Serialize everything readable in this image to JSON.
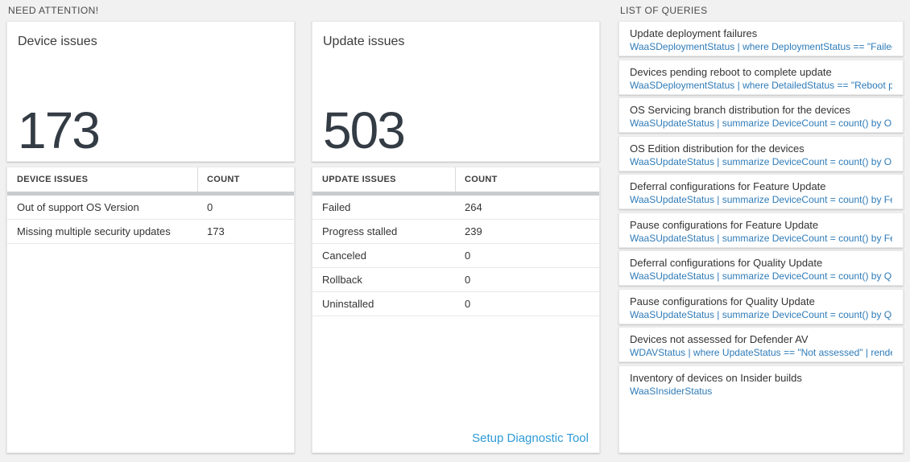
{
  "colors": {
    "accent-blue": "#2e7bb8",
    "link-blue": "#2e9bd6",
    "big-number": "#333b44",
    "header-bar": "#c9ccce"
  },
  "need_attention": {
    "section_label": "NEED ATTENTION!",
    "cards": [
      {
        "title": "Device issues",
        "big_number": "173",
        "table": {
          "columns": [
            "DEVICE ISSUES",
            "COUNT"
          ],
          "rows": [
            {
              "label": "Out of support OS Version",
              "count": "0"
            },
            {
              "label": "Missing multiple security updates",
              "count": "173"
            }
          ]
        }
      },
      {
        "title": "Update issues",
        "big_number": "503",
        "table": {
          "columns": [
            "UPDATE ISSUES",
            "COUNT"
          ],
          "rows": [
            {
              "label": "Failed",
              "count": "264"
            },
            {
              "label": "Progress stalled",
              "count": "239"
            },
            {
              "label": "Canceled",
              "count": "0"
            },
            {
              "label": "Rollback",
              "count": "0"
            },
            {
              "label": "Uninstalled",
              "count": "0"
            }
          ]
        },
        "footer_link": "Setup Diagnostic Tool"
      }
    ]
  },
  "queries": {
    "section_label": "LIST OF QUERIES",
    "items": [
      {
        "title": "Update deployment failures",
        "query": "WaaSDeploymentStatus | where DeploymentStatus == \"Failed\" |..."
      },
      {
        "title": "Devices pending reboot to complete update",
        "query": "WaaSDeploymentStatus | where DetailedStatus == \"Reboot pend..."
      },
      {
        "title": "OS Servicing branch distribution for the devices",
        "query": "WaaSUpdateStatus | summarize DeviceCount = count() by OSSer..."
      },
      {
        "title": "OS Edition distribution for the devices",
        "query": "WaaSUpdateStatus | summarize DeviceCount = count() by OSEdit..."
      },
      {
        "title": "Deferral configurations for Feature Update",
        "query": "WaaSUpdateStatus | summarize DeviceCount = count() by Featur..."
      },
      {
        "title": "Pause configurations for Feature Update",
        "query": "WaaSUpdateStatus | summarize DeviceCount = count() by Featur..."
      },
      {
        "title": "Deferral configurations for Quality Update",
        "query": "WaaSUpdateStatus | summarize DeviceCount = count() by Qualit..."
      },
      {
        "title": "Pause configurations for Quality Update",
        "query": "WaaSUpdateStatus | summarize DeviceCount = count() by Qualit..."
      },
      {
        "title": "Devices not assessed for Defender AV",
        "query": "WDAVStatus | where UpdateStatus == \"Not assessed\" | render ta..."
      },
      {
        "title": "Inventory of devices on Insider builds",
        "query": "WaaSInsiderStatus"
      }
    ]
  }
}
